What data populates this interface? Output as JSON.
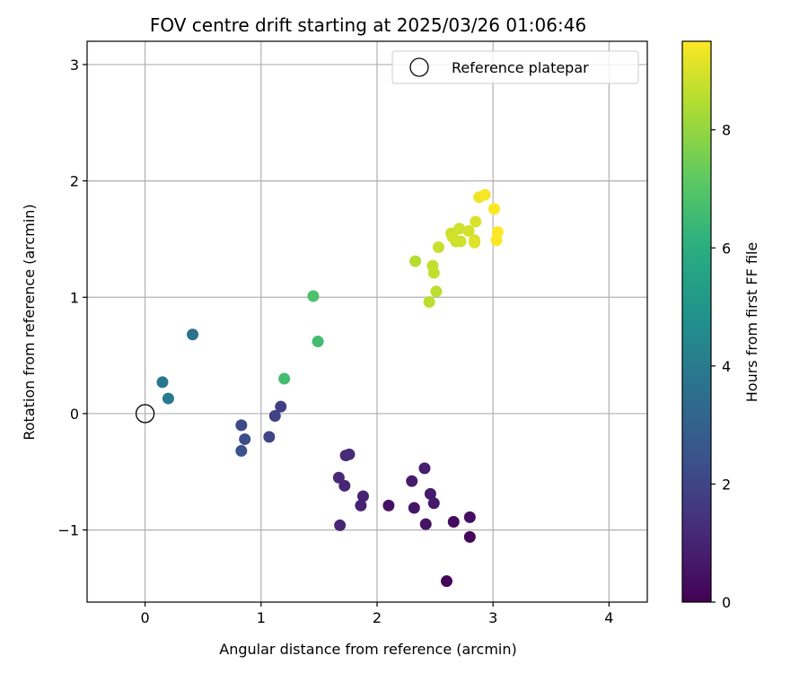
{
  "chart_data": {
    "type": "scatter",
    "title": "FOV centre drift starting at 2025/03/26 01:06:46",
    "xlabel": "Angular distance from reference (arcmin)",
    "ylabel": "Rotation from reference (arcmin)",
    "xlim": [
      -0.5,
      4.33
    ],
    "ylim": [
      -1.62,
      3.2
    ],
    "xticks": [
      0,
      1,
      2,
      3,
      4
    ],
    "yticks": [
      -1,
      0,
      1,
      2,
      3
    ],
    "xtick_labels": [
      "0",
      "1",
      "2",
      "3",
      "4"
    ],
    "ytick_labels": [
      "−1",
      "0",
      "1",
      "2",
      "3"
    ],
    "grid": true,
    "legend": {
      "position": "top-right",
      "entries": [
        {
          "label": "Reference platepar",
          "marker": "open-circle",
          "x": 0,
          "y": 0
        }
      ]
    },
    "colorbar": {
      "label": "Hours from first FF file",
      "colormap": "viridis",
      "range": [
        0,
        9.5
      ],
      "ticks": [
        0,
        2,
        4,
        6,
        8
      ],
      "tick_labels": [
        "0",
        "2",
        "4",
        "6",
        "8"
      ]
    },
    "series": [
      {
        "points": [
          {
            "x": 2.6,
            "y": -1.44,
            "c": 0.1
          },
          {
            "x": 2.8,
            "y": -1.06,
            "c": 0.2
          },
          {
            "x": 2.66,
            "y": -0.93,
            "c": 0.3
          },
          {
            "x": 2.8,
            "y": -0.89,
            "c": 0.4
          },
          {
            "x": 2.1,
            "y": -0.79,
            "c": 0.5
          },
          {
            "x": 2.42,
            "y": -0.95,
            "c": 0.55
          },
          {
            "x": 2.32,
            "y": -0.81,
            "c": 0.6
          },
          {
            "x": 2.49,
            "y": -0.77,
            "c": 0.7
          },
          {
            "x": 2.46,
            "y": -0.69,
            "c": 0.75
          },
          {
            "x": 2.3,
            "y": -0.58,
            "c": 0.8
          },
          {
            "x": 2.41,
            "y": -0.47,
            "c": 0.85
          },
          {
            "x": 1.86,
            "y": -0.79,
            "c": 0.95
          },
          {
            "x": 1.88,
            "y": -0.71,
            "c": 1.0
          },
          {
            "x": 1.68,
            "y": -0.96,
            "c": 1.05
          },
          {
            "x": 1.72,
            "y": -0.62,
            "c": 1.1
          },
          {
            "x": 1.67,
            "y": -0.55,
            "c": 1.15
          },
          {
            "x": 1.73,
            "y": -0.36,
            "c": 1.2
          },
          {
            "x": 1.76,
            "y": -0.35,
            "c": 1.25
          },
          {
            "x": 1.17,
            "y": 0.06,
            "c": 1.8
          },
          {
            "x": 1.12,
            "y": -0.02,
            "c": 1.9
          },
          {
            "x": 1.07,
            "y": -0.2,
            "c": 2.0
          },
          {
            "x": 0.83,
            "y": -0.1,
            "c": 2.2
          },
          {
            "x": 0.86,
            "y": -0.22,
            "c": 2.3
          },
          {
            "x": 0.83,
            "y": -0.32,
            "c": 2.4
          },
          {
            "x": 0.41,
            "y": 0.68,
            "c": 3.6
          },
          {
            "x": 0.15,
            "y": 0.27,
            "c": 3.8
          },
          {
            "x": 0.2,
            "y": 0.13,
            "c": 3.9
          },
          {
            "x": 1.2,
            "y": 0.3,
            "c": 6.6
          },
          {
            "x": 1.49,
            "y": 0.62,
            "c": 6.6
          },
          {
            "x": 1.45,
            "y": 1.01,
            "c": 6.8
          },
          {
            "x": 2.33,
            "y": 1.31,
            "c": 8.5
          },
          {
            "x": 2.45,
            "y": 0.96,
            "c": 8.6
          },
          {
            "x": 2.51,
            "y": 1.05,
            "c": 8.6
          },
          {
            "x": 2.49,
            "y": 1.21,
            "c": 8.7
          },
          {
            "x": 2.48,
            "y": 1.27,
            "c": 8.7
          },
          {
            "x": 2.53,
            "y": 1.43,
            "c": 8.75
          },
          {
            "x": 2.64,
            "y": 1.55,
            "c": 8.8
          },
          {
            "x": 2.68,
            "y": 1.48,
            "c": 8.8
          },
          {
            "x": 2.72,
            "y": 1.48,
            "c": 8.85
          },
          {
            "x": 2.71,
            "y": 1.59,
            "c": 8.85
          },
          {
            "x": 2.65,
            "y": 1.52,
            "c": 8.9
          },
          {
            "x": 2.79,
            "y": 1.57,
            "c": 8.9
          },
          {
            "x": 2.84,
            "y": 1.49,
            "c": 8.95
          },
          {
            "x": 2.85,
            "y": 1.65,
            "c": 9.0
          },
          {
            "x": 2.84,
            "y": 1.47,
            "c": 9.1
          },
          {
            "x": 2.88,
            "y": 1.86,
            "c": 9.3
          },
          {
            "x": 2.93,
            "y": 1.88,
            "c": 9.4
          },
          {
            "x": 3.01,
            "y": 1.76,
            "c": 9.5
          },
          {
            "x": 3.04,
            "y": 1.56,
            "c": 9.5
          },
          {
            "x": 3.03,
            "y": 1.49,
            "c": 9.5
          }
        ]
      }
    ]
  }
}
